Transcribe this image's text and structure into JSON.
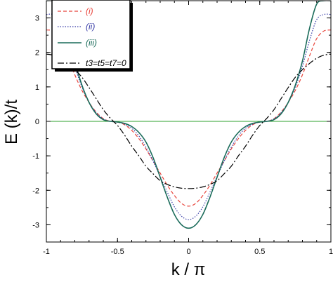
{
  "chart_data": {
    "type": "line",
    "xlabel": "k / π",
    "ylabel": "E (k)/t",
    "xlim": [
      -1,
      1
    ],
    "ylim": [
      -3.5,
      3.5
    ],
    "xticks": [
      -1,
      -0.5,
      0,
      0.5,
      1
    ],
    "xtick_labels": [
      "-1",
      "-0.5",
      "0",
      "0.5",
      "1"
    ],
    "yticks": [
      -3,
      -2,
      -1,
      0,
      1,
      2,
      3
    ],
    "ytick_labels": [
      "-3",
      "-2",
      "-1",
      "0",
      "1",
      "2",
      "3"
    ],
    "grid": false,
    "legend_position": "top-left",
    "zero_line": {
      "y": 0,
      "color": "#2ca02c"
    },
    "series": [
      {
        "name": "(i)",
        "color": "#e8453c",
        "dash": "dashed",
        "x": [
          -1,
          -0.95,
          -0.9,
          -0.85,
          -0.8,
          -0.75,
          -0.7,
          -0.65,
          -0.6,
          -0.55,
          -0.5,
          -0.45,
          -0.4,
          -0.35,
          -0.3,
          -0.25,
          -0.2,
          -0.15,
          -0.1,
          -0.05,
          0,
          0.05,
          0.1,
          0.15,
          0.2,
          0.25,
          0.3,
          0.35,
          0.4,
          0.45,
          0.5,
          0.55,
          0.6,
          0.65,
          0.7,
          0.75,
          0.8,
          0.85,
          0.9,
          0.95,
          1
        ],
        "y": [
          2.65,
          2.62,
          2.4,
          1.9,
          1.35,
          0.9,
          0.55,
          0.27,
          0.08,
          0.0,
          -0.02,
          -0.1,
          -0.26,
          -0.5,
          -0.8,
          -1.15,
          -1.5,
          -1.85,
          -2.15,
          -2.38,
          -2.46,
          -2.38,
          -2.15,
          -1.85,
          -1.5,
          -1.15,
          -0.8,
          -0.5,
          -0.26,
          -0.1,
          -0.02,
          0.0,
          0.08,
          0.27,
          0.55,
          0.9,
          1.35,
          1.9,
          2.4,
          2.62,
          2.65
        ]
      },
      {
        "name": "(ii)",
        "color": "#3a3fa8",
        "dash": "dotted",
        "x": [
          -1,
          -0.95,
          -0.9,
          -0.85,
          -0.8,
          -0.75,
          -0.7,
          -0.65,
          -0.6,
          -0.55,
          -0.5,
          -0.45,
          -0.4,
          -0.35,
          -0.3,
          -0.25,
          -0.2,
          -0.15,
          -0.1,
          -0.05,
          0,
          0.05,
          0.1,
          0.15,
          0.2,
          0.25,
          0.3,
          0.35,
          0.4,
          0.45,
          0.5,
          0.55,
          0.6,
          0.65,
          0.7,
          0.75,
          0.8,
          0.85,
          0.9,
          0.95,
          1
        ],
        "y": [
          3.1,
          3.1,
          2.95,
          2.35,
          1.6,
          1.0,
          0.55,
          0.25,
          0.07,
          0.0,
          -0.02,
          -0.08,
          -0.2,
          -0.42,
          -0.75,
          -1.15,
          -1.6,
          -2.05,
          -2.48,
          -2.75,
          -2.85,
          -2.75,
          -2.48,
          -2.05,
          -1.6,
          -1.15,
          -0.75,
          -0.42,
          -0.2,
          -0.08,
          -0.02,
          0.0,
          0.07,
          0.25,
          0.55,
          1.0,
          1.6,
          2.35,
          2.95,
          3.1,
          3.1
        ]
      },
      {
        "name": "(iii)",
        "color": "#1a6b5a",
        "dash": "solid",
        "x": [
          -1,
          -0.95,
          -0.9,
          -0.85,
          -0.8,
          -0.75,
          -0.7,
          -0.65,
          -0.6,
          -0.55,
          -0.5,
          -0.45,
          -0.4,
          -0.35,
          -0.3,
          -0.25,
          -0.2,
          -0.15,
          -0.1,
          -0.05,
          0,
          0.05,
          0.1,
          0.15,
          0.2,
          0.25,
          0.3,
          0.35,
          0.4,
          0.45,
          0.5,
          0.55,
          0.6,
          0.65,
          0.7,
          0.75,
          0.8,
          0.85,
          0.9,
          0.95,
          1
        ],
        "y": [
          3.5,
          3.5,
          3.4,
          2.7,
          1.75,
          1.05,
          0.55,
          0.22,
          0.05,
          0.0,
          -0.02,
          -0.06,
          -0.15,
          -0.32,
          -0.6,
          -1.05,
          -1.62,
          -2.2,
          -2.7,
          -3.0,
          -3.1,
          -3.0,
          -2.7,
          -2.2,
          -1.62,
          -1.05,
          -0.6,
          -0.32,
          -0.15,
          -0.06,
          -0.02,
          0.0,
          0.05,
          0.22,
          0.55,
          1.05,
          1.75,
          2.7,
          3.4,
          3.5,
          3.5
        ]
      },
      {
        "name": "t3=t5=t7=0",
        "color": "#000000",
        "dash": "dashdot",
        "x": [
          -1,
          -0.95,
          -0.9,
          -0.85,
          -0.8,
          -0.75,
          -0.7,
          -0.65,
          -0.6,
          -0.55,
          -0.5,
          -0.45,
          -0.4,
          -0.35,
          -0.3,
          -0.25,
          -0.2,
          -0.15,
          -0.1,
          -0.05,
          0,
          0.05,
          0.1,
          0.15,
          0.2,
          0.25,
          0.3,
          0.35,
          0.4,
          0.45,
          0.5,
          0.55,
          0.6,
          0.65,
          0.7,
          0.75,
          0.8,
          0.85,
          0.9,
          0.95,
          1
        ],
        "y": [
          1.95,
          1.92,
          1.83,
          1.68,
          1.5,
          1.28,
          0.98,
          0.66,
          0.34,
          0.09,
          -0.12,
          -0.4,
          -0.72,
          -1.0,
          -1.3,
          -1.52,
          -1.72,
          -1.83,
          -1.9,
          -1.94,
          -1.95,
          -1.94,
          -1.9,
          -1.83,
          -1.72,
          -1.52,
          -1.3,
          -1.0,
          -0.72,
          -0.4,
          -0.12,
          0.09,
          0.34,
          0.66,
          0.98,
          1.28,
          1.5,
          1.68,
          1.83,
          1.92,
          1.95
        ]
      }
    ]
  },
  "legend": {
    "items": [
      {
        "label": "(i)",
        "color": "#e8453c"
      },
      {
        "label": "(ii)",
        "color": "#3a3fa8"
      },
      {
        "label": "(iii)",
        "color": "#1a6b5a"
      },
      {
        "label": "t3=t5=t7=0",
        "color": "#000000"
      }
    ]
  }
}
